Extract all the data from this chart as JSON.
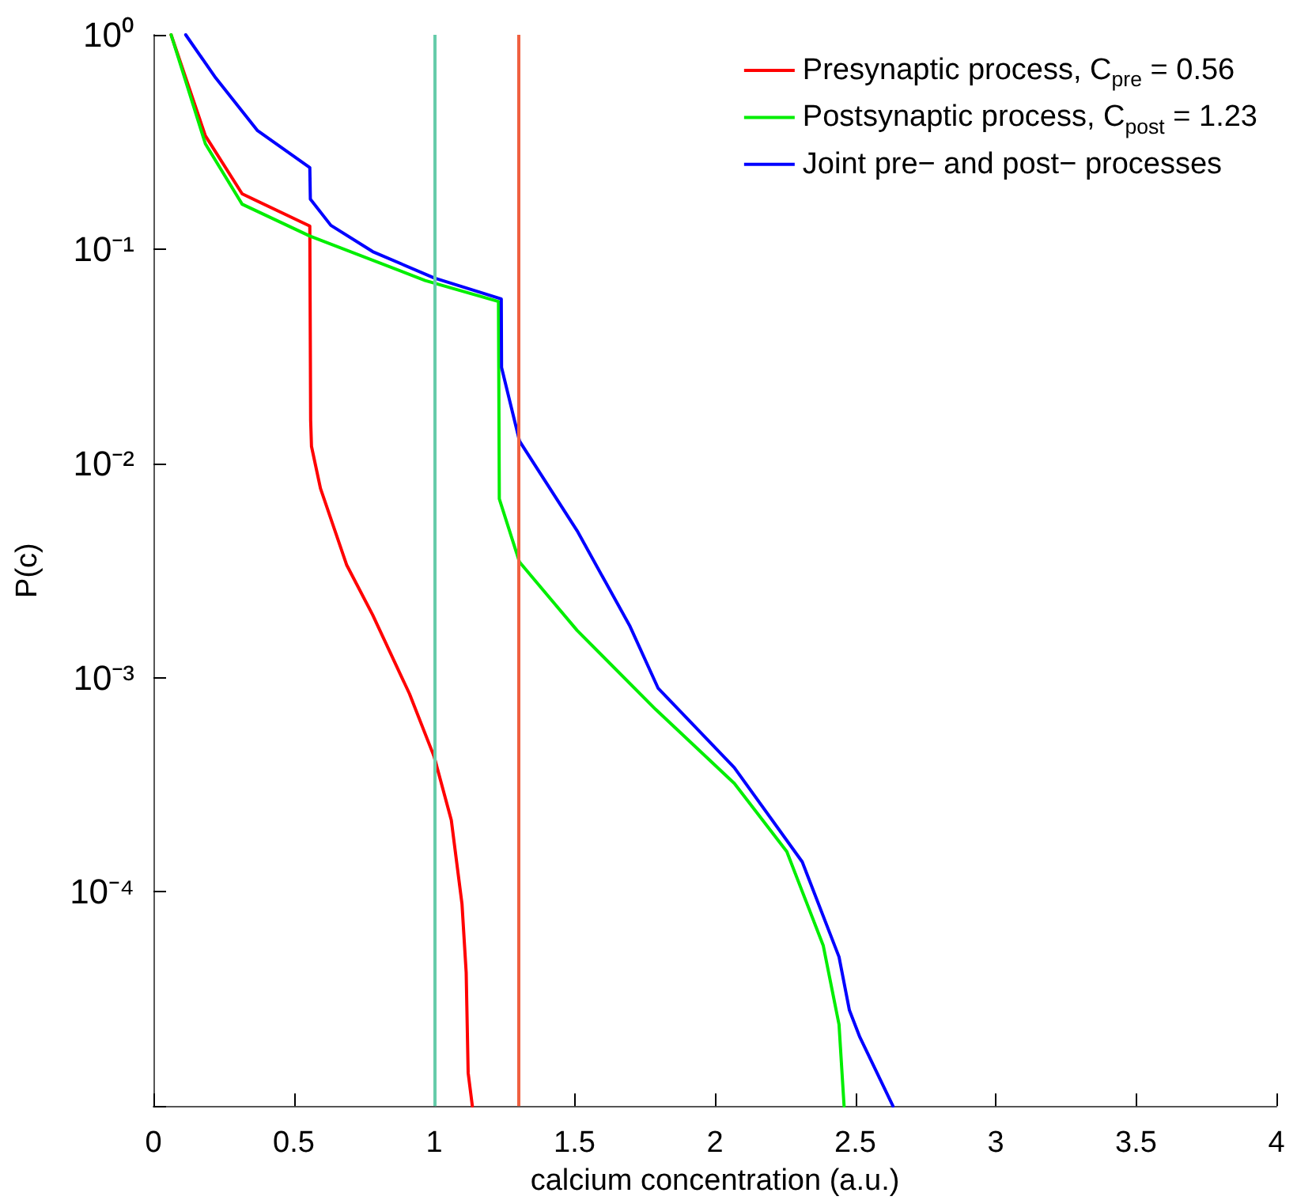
{
  "chart_data": {
    "type": "line",
    "xlabel": "calcium concentration (a.u.)",
    "ylabel": "P(c)",
    "xlim": [
      0,
      4
    ],
    "xticks": [
      0,
      0.5,
      1,
      1.5,
      2,
      2.5,
      3,
      3.5,
      4
    ],
    "ylim": [
      1e-05,
      1
    ],
    "log": "y",
    "yticks": [
      {
        "value": 1e-05,
        "label": null
      },
      {
        "value": 0.0001,
        "label": "10⁻⁴"
      },
      {
        "value": 0.001,
        "label": "10⁻³"
      },
      {
        "value": 0.01,
        "label": "10⁻²"
      },
      {
        "value": 0.1,
        "label": "10⁻¹"
      },
      {
        "value": 1,
        "label": "10⁰"
      }
    ],
    "grid": false,
    "legend": "top right",
    "marker": "none",
    "line_style": "solid",
    "ref_lines": [
      {
        "axis": "x",
        "value": 1.0,
        "label": null,
        "color": "#66ccaa"
      },
      {
        "axis": "x",
        "value": 1.3,
        "label": null,
        "color": "#f06040"
      }
    ],
    "series": [
      {
        "name": "Presynaptic process, C$_{pre}$ = 0.56",
        "color": "#ff0000",
        "x": [
          0.063,
          0.185,
          0.316,
          0.557,
          0.56,
          0.563,
          0.595,
          0.688,
          0.781,
          0.912,
          1.0,
          1.061,
          1.099,
          1.114,
          1.121,
          1.136
        ],
        "values": [
          1,
          0.338,
          0.181,
          0.128,
          0.0159,
          0.012,
          0.00764,
          0.00336,
          0.00196,
          0.00084,
          0.000427,
          0.000216,
          8.8e-05,
          4.2e-05,
          1.43e-05,
          1e-05
        ]
      },
      {
        "name": "Postsynaptic process, C$_{post}$ = 1.23",
        "color": "#00ee00",
        "x": [
          0.063,
          0.185,
          0.316,
          0.557,
          0.968,
          1.229,
          1.23,
          1.232,
          1.304,
          1.509,
          1.789,
          2.069,
          2.256,
          2.386,
          2.442,
          2.46
        ],
        "values": [
          1,
          0.31,
          0.162,
          0.115,
          0.0713,
          0.0569,
          0.028,
          0.00682,
          0.00346,
          0.00166,
          0.00071,
          0.000321,
          0.000154,
          5.6e-05,
          2.4e-05,
          1e-05
        ]
      },
      {
        "name": "Joint pre− and post− processes",
        "color": "#0000ff",
        "x": [
          0.115,
          0.222,
          0.371,
          0.557,
          0.559,
          0.632,
          0.781,
          1.0,
          1.239,
          1.24,
          1.304,
          1.509,
          1.696,
          1.798,
          2.069,
          2.311,
          2.442,
          2.479,
          2.516,
          2.634
        ],
        "values": [
          1,
          0.629,
          0.357,
          0.24,
          0.171,
          0.129,
          0.0973,
          0.0733,
          0.0585,
          0.028,
          0.0127,
          0.00485,
          0.00175,
          0.00089,
          0.00038,
          0.000138,
          4.97e-05,
          2.8e-05,
          2.1e-05,
          1e-05
        ]
      }
    ]
  }
}
